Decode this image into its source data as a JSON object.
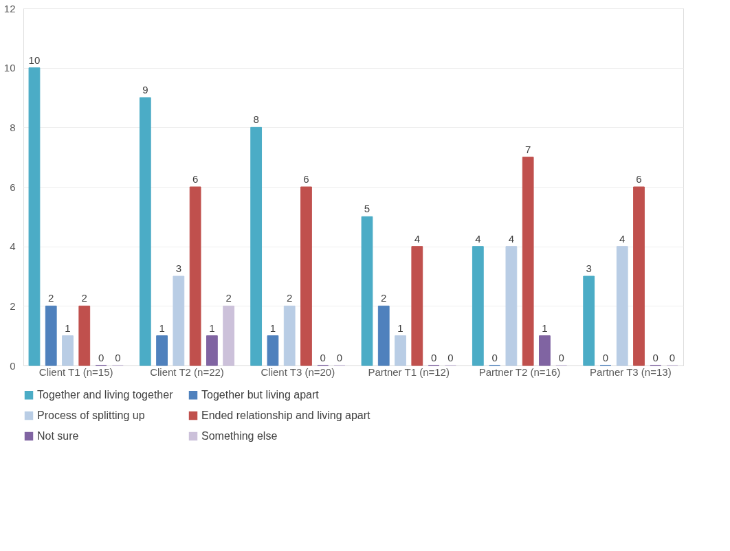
{
  "chart_data": {
    "type": "bar",
    "categories": [
      "Client T1 (n=15)",
      "Client T2 (n=22)",
      "Client T3 (n=20)",
      "Partner T1 (n=12)",
      "Partner T2 (n=16)",
      "Partner T3 (n=13)"
    ],
    "series": [
      {
        "name": "Together and living together",
        "color": "#4bacc6",
        "values": [
          10,
          9,
          8,
          5,
          4,
          3
        ]
      },
      {
        "name": "Together but living apart",
        "color": "#4f81bd",
        "values": [
          2,
          1,
          1,
          2,
          0,
          0
        ]
      },
      {
        "name": "Process of splitting up",
        "color": "#b9cde5",
        "values": [
          1,
          3,
          2,
          1,
          4,
          4
        ]
      },
      {
        "name": "Ended relationship and living apart",
        "color": "#c0504d",
        "values": [
          2,
          6,
          6,
          4,
          7,
          6
        ]
      },
      {
        "name": "Not sure",
        "color": "#8064a2",
        "values": [
          0,
          1,
          0,
          0,
          1,
          0
        ]
      },
      {
        "name": "Something else",
        "color": "#ccc1da",
        "values": [
          0,
          2,
          0,
          0,
          0,
          0
        ]
      }
    ],
    "ylim": [
      0,
      12
    ],
    "yticks": [
      0,
      2,
      4,
      6,
      8,
      10,
      12
    ],
    "grid": "y",
    "legend": "bottom",
    "data_labels": true
  }
}
